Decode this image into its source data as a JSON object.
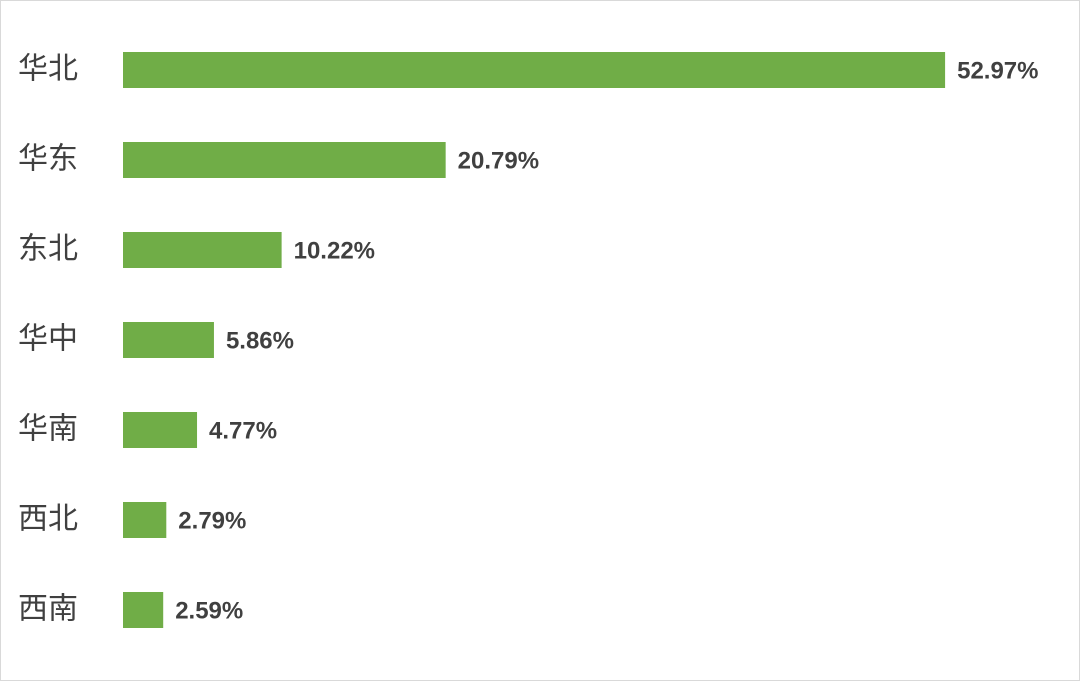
{
  "chart_data": {
    "type": "bar",
    "orientation": "horizontal",
    "categories": [
      "华北",
      "华东",
      "东北",
      "华中",
      "华南",
      "西北",
      "西南"
    ],
    "values": [
      52.97,
      20.79,
      10.22,
      5.86,
      4.77,
      2.79,
      2.59
    ],
    "value_labels": [
      "52.97%",
      "20.79%",
      "10.22%",
      "5.86%",
      "4.77%",
      "2.79%",
      "2.59%"
    ],
    "color": "#70ad47"
  }
}
